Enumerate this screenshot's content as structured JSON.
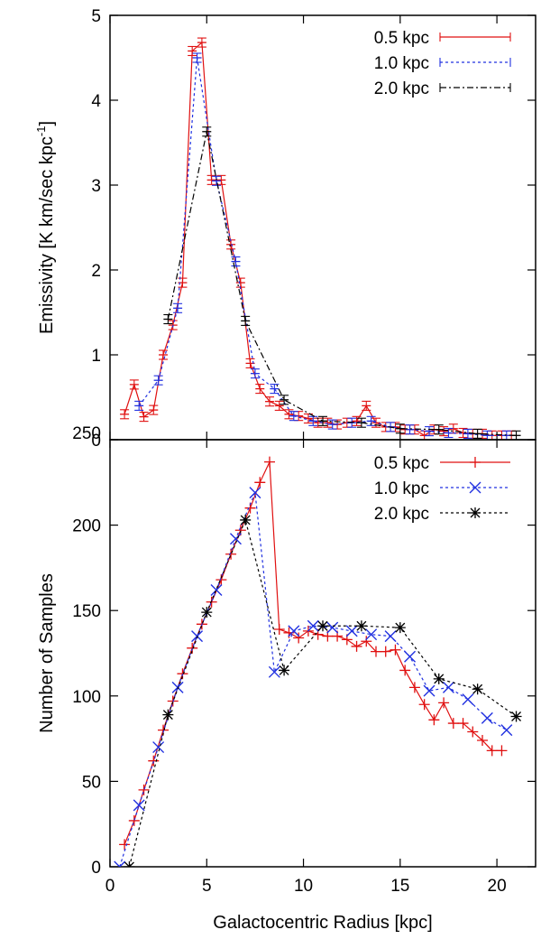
{
  "chart_data": [
    {
      "type": "line",
      "panel": "top",
      "title": "",
      "xlabel": "",
      "ylabel": "Emissivity [K km/sec kpc⁻¹]",
      "xlim": [
        0,
        22
      ],
      "ylim": [
        0,
        5
      ],
      "yticks": [
        0,
        1,
        2,
        3,
        4,
        5
      ],
      "xticks": [
        0,
        5,
        10,
        15,
        20
      ],
      "legend_position": "top-right",
      "series": [
        {
          "name": "0.5 kpc",
          "color": "#e01010",
          "dash": "solid",
          "marker": "errorbar",
          "x": [
            0.75,
            1.25,
            1.75,
            2.25,
            2.75,
            3.25,
            3.75,
            4.25,
            4.75,
            5.25,
            5.75,
            6.25,
            6.75,
            7.25,
            7.75,
            8.25,
            8.75,
            9.25,
            9.75,
            10.25,
            10.75,
            11.25,
            11.75,
            12.25,
            12.75,
            13.25,
            13.75,
            14.25,
            14.75,
            15.25,
            15.75,
            16.25,
            16.75,
            17.25,
            17.75,
            18.25,
            18.75,
            19.25,
            19.75,
            20.25,
            20.75
          ],
          "y": [
            0.3,
            0.65,
            0.27,
            0.35,
            1.0,
            1.35,
            1.85,
            4.58,
            4.68,
            3.06,
            3.06,
            2.3,
            1.85,
            0.9,
            0.6,
            0.45,
            0.4,
            0.3,
            0.28,
            0.25,
            0.2,
            0.2,
            0.18,
            0.2,
            0.22,
            0.4,
            0.2,
            0.15,
            0.15,
            0.12,
            0.12,
            0.05,
            0.12,
            0.1,
            0.13,
            0.08,
            0.07,
            0.07,
            0.05,
            0.05,
            0.05
          ]
        },
        {
          "name": "1.0 kpc",
          "color": "#2030e0",
          "dash": "3,3",
          "marker": "errorbar",
          "x": [
            1.5,
            2.5,
            3.5,
            4.5,
            5.5,
            6.5,
            7.5,
            8.5,
            9.5,
            10.5,
            11.5,
            12.5,
            13.5,
            14.5,
            15.5,
            16.5,
            17.5,
            18.5,
            19.5,
            20.5
          ],
          "y": [
            0.4,
            0.7,
            1.55,
            4.5,
            3.05,
            2.1,
            0.78,
            0.6,
            0.28,
            0.22,
            0.18,
            0.2,
            0.22,
            0.15,
            0.12,
            0.1,
            0.08,
            0.07,
            0.05,
            0.05
          ]
        },
        {
          "name": "2.0 kpc",
          "color": "#000000",
          "dash": "7,3,2,3",
          "marker": "errorbar",
          "x": [
            3.0,
            5.0,
            7.0,
            9.0,
            11.0,
            13.0,
            15.0,
            17.0,
            19.0,
            21.0
          ],
          "y": [
            1.42,
            3.63,
            1.4,
            0.47,
            0.22,
            0.2,
            0.13,
            0.12,
            0.07,
            0.05
          ]
        }
      ]
    },
    {
      "type": "line",
      "panel": "bottom",
      "title": "",
      "xlabel": "Galactocentric Radius [kpc]",
      "ylabel": "Number of Samples",
      "xlim": [
        0,
        22
      ],
      "ylim": [
        0,
        250
      ],
      "yticks": [
        0,
        50,
        100,
        150,
        200,
        250
      ],
      "xticks": [
        0,
        5,
        10,
        15,
        20
      ],
      "legend_position": "top-right",
      "series": [
        {
          "name": "0.5 kpc",
          "color": "#e01010",
          "dash": "solid",
          "marker": "plus",
          "x": [
            0.75,
            1.25,
            1.75,
            2.25,
            2.75,
            3.25,
            3.75,
            4.25,
            4.75,
            5.25,
            5.75,
            6.25,
            6.75,
            7.25,
            7.75,
            8.25,
            8.75,
            9.25,
            9.75,
            10.25,
            10.75,
            11.25,
            11.75,
            12.25,
            12.75,
            13.25,
            13.75,
            14.25,
            14.75,
            15.25,
            15.75,
            16.25,
            16.75,
            17.25,
            17.75,
            18.25,
            18.75,
            19.25,
            19.75,
            20.25
          ],
          "y": [
            13,
            27,
            45,
            62,
            80,
            97,
            113,
            128,
            142,
            155,
            168,
            183,
            197,
            210,
            225,
            237,
            139,
            137,
            134,
            138,
            136,
            135,
            135,
            133,
            129,
            132,
            126,
            126,
            127,
            115,
            105,
            95,
            86,
            96,
            84,
            84,
            79,
            74,
            68,
            68
          ]
        },
        {
          "name": "1.0 kpc",
          "color": "#2030e0",
          "dash": "3,3",
          "marker": "x",
          "x": [
            0.5,
            1.5,
            2.5,
            3.5,
            4.5,
            5.5,
            6.5,
            7.5,
            8.5,
            9.5,
            10.5,
            11.5,
            12.5,
            13.5,
            14.5,
            15.5,
            16.5,
            17.5,
            18.5,
            19.5,
            20.5
          ],
          "y": [
            0,
            36,
            70,
            105,
            135,
            162,
            192,
            219,
            114,
            138,
            141,
            140,
            138,
            136,
            135,
            123,
            103,
            105,
            98,
            87,
            80
          ]
        },
        {
          "name": "2.0 kpc",
          "color": "#000000",
          "dash": "3,3",
          "marker": "star",
          "x": [
            1.0,
            3.0,
            5.0,
            7.0,
            9.0,
            11.0,
            13.0,
            15.0,
            17.0,
            19.0,
            21.0
          ],
          "y": [
            0,
            89,
            149,
            203,
            115,
            141,
            141,
            140,
            110,
            104,
            88
          ]
        }
      ]
    }
  ]
}
